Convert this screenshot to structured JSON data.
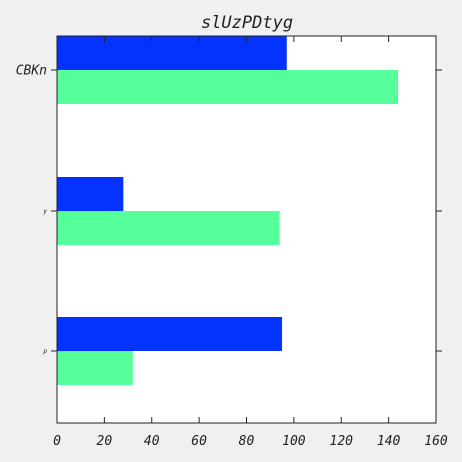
{
  "chart_data": {
    "type": "bar",
    "orientation": "horizontal",
    "title": "slUzPDtyg",
    "xlabel": "",
    "ylabel": "",
    "categories": [
      "CBKn",
      "y",
      "p"
    ],
    "series": [
      {
        "values": [
          97,
          28,
          95
        ],
        "color": "#0433ff"
      },
      {
        "values": [
          144,
          94,
          32
        ],
        "color": "#55ff99"
      }
    ],
    "xlim": [
      0,
      160
    ],
    "xticks": [
      0,
      20,
      40,
      60,
      80,
      100,
      120,
      140,
      160
    ],
    "grid": false,
    "legend": "none"
  }
}
